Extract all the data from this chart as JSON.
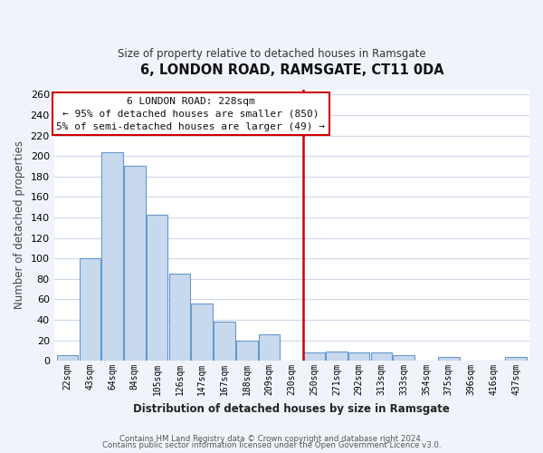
{
  "title": "6, LONDON ROAD, RAMSGATE, CT11 0DA",
  "subtitle": "Size of property relative to detached houses in Ramsgate",
  "xlabel": "Distribution of detached houses by size in Ramsgate",
  "ylabel": "Number of detached properties",
  "bar_labels": [
    "22sqm",
    "43sqm",
    "64sqm",
    "84sqm",
    "105sqm",
    "126sqm",
    "147sqm",
    "167sqm",
    "188sqm",
    "209sqm",
    "230sqm",
    "250sqm",
    "271sqm",
    "292sqm",
    "313sqm",
    "333sqm",
    "354sqm",
    "375sqm",
    "396sqm",
    "416sqm",
    "437sqm"
  ],
  "bar_values": [
    5,
    100,
    204,
    190,
    143,
    85,
    56,
    38,
    20,
    26,
    0,
    8,
    9,
    8,
    8,
    5,
    0,
    4,
    0,
    0,
    4
  ],
  "bar_color": "#c8d9ee",
  "bar_edge_color": "#6699cc",
  "vline_x_index": 10,
  "vline_color": "#cc0000",
  "annotation_title": "6 LONDON ROAD: 228sqm",
  "annotation_line1": "← 95% of detached houses are smaller (850)",
  "annotation_line2": "5% of semi-detached houses are larger (49) →",
  "annotation_box_color": "#ffffff",
  "annotation_box_edge": "#cc0000",
  "ylim": [
    0,
    265
  ],
  "yticks": [
    0,
    20,
    40,
    60,
    80,
    100,
    120,
    140,
    160,
    180,
    200,
    220,
    240,
    260
  ],
  "footer1": "Contains HM Land Registry data © Crown copyright and database right 2024.",
  "footer2": "Contains public sector information licensed under the Open Government Licence v3.0.",
  "plot_bg_color": "#ffffff",
  "fig_bg_color": "#f0f4fa",
  "grid_color": "#d0d8e8"
}
